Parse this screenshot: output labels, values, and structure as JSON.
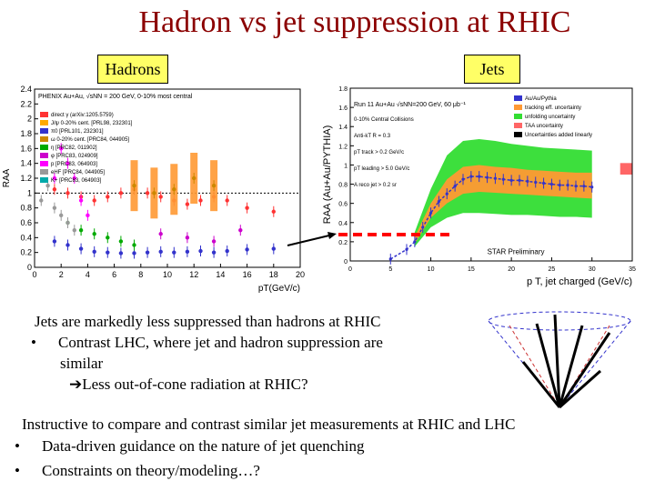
{
  "slide": {
    "title": "Hadron vs jet suppression at RHIC",
    "tag_hadrons": "Hadrons",
    "tag_jets": "Jets",
    "bullets": {
      "line1": "Jets are markedly  less suppressed than hadrons at RHIC",
      "bullet_char": "•",
      "line2": "Contrast LHC, where jet and hadron suppression are",
      "line3": "similar",
      "arrow": "➔",
      "line4": "Less out-of-cone radiation at RHIC?",
      "line5": "Instructive to compare and contrast similar jet measurements at RHIC and LHC",
      "line6": "Data-driven guidance on the nature of jet quenching",
      "line7": "Constraints on theory/modeling…?"
    },
    "colors": {
      "title": "#8b0000",
      "tag_bg": "#ffff66",
      "arrow_line": "#000000",
      "dashed_red": "#ff0000"
    }
  },
  "chart_data": [
    {
      "type": "scatter",
      "title": "",
      "xlabel": "pT(GeV/c)",
      "ylabel": "RAA",
      "xlim": [
        0,
        20
      ],
      "ylim": [
        0,
        2.4
      ],
      "grid": false,
      "xticks": [
        0,
        2,
        4,
        6,
        8,
        10,
        12,
        14,
        16,
        18,
        20
      ],
      "yticks": [
        0,
        0.2,
        0.4,
        0.6,
        0.8,
        1,
        1.2,
        1.4,
        1.6,
        1.8,
        2,
        2.2,
        2.4
      ],
      "reference_line": 1,
      "header": "PHENIX  Au+Au, √sNN = 200 GeV, 0-10% most central",
      "legend": [
        {
          "label": "direct γ (arXiv:1205.5759)",
          "color": "#ff3333"
        },
        {
          "label": "J/ψ 0-20% cent. [PRL98, 232301]",
          "color": "#ffaa00"
        },
        {
          "label": "π0 [PRL101, 232301]",
          "color": "#3333cc"
        },
        {
          "label": "ω 0-20% cent. [PRC84, 044905]",
          "color": "#cc8800"
        },
        {
          "label": "η [PRC82, 011902]",
          "color": "#00aa00"
        },
        {
          "label": "φ [PRC83, 024909]",
          "color": "#cc00cc"
        },
        {
          "label": "p [PRC83, 064903]",
          "color": "#ff00ff"
        },
        {
          "label": "eHF [PRC84, 044905]",
          "color": "#999999"
        },
        {
          "label": "K+ [PRC83, 064903]",
          "color": "#00aaaa"
        }
      ],
      "series": [
        {
          "name": "π0",
          "color": "#3333cc",
          "x": [
            1.5,
            2.5,
            3.5,
            4.5,
            5.5,
            6.5,
            7.5,
            8.5,
            9.5,
            10.5,
            11.5,
            12.5,
            13.5,
            14.5,
            16,
            18
          ],
          "values": [
            0.35,
            0.3,
            0.25,
            0.21,
            0.2,
            0.19,
            0.19,
            0.2,
            0.21,
            0.2,
            0.21,
            0.22,
            0.2,
            0.22,
            0.24,
            0.25
          ]
        },
        {
          "name": "direct γ",
          "color": "#ff3333",
          "x": [
            1.5,
            2.5,
            3.5,
            4.5,
            5.5,
            6.5,
            7.5,
            8.5,
            9.5,
            10.5,
            11.5,
            12.5,
            13.5,
            14.5,
            16,
            18
          ],
          "values": [
            1.05,
            1.0,
            0.95,
            0.9,
            0.95,
            1.0,
            1.05,
            1.0,
            0.95,
            0.9,
            0.85,
            0.9,
            0.95,
            0.9,
            0.8,
            0.75
          ]
        },
        {
          "name": "ω 0-20% cent.",
          "color": "#cc8800",
          "x": [
            7.5,
            9,
            10.5,
            12,
            13.5
          ],
          "values": [
            1.1,
            1.0,
            1.05,
            1.2,
            1.1
          ]
        },
        {
          "name": "η",
          "color": "#00aa00",
          "x": [
            2.5,
            3.5,
            4.5,
            5.5,
            6.5,
            7.5
          ],
          "values": [
            0.6,
            0.5,
            0.45,
            0.4,
            0.35,
            0.3
          ]
        },
        {
          "name": "eHF",
          "color": "#999999",
          "x": [
            0.5,
            1,
            1.5,
            2,
            2.5,
            3
          ],
          "values": [
            0.9,
            1.1,
            0.8,
            0.7,
            0.6,
            0.5
          ]
        },
        {
          "name": "p",
          "color": "#ff00ff",
          "x": [
            1.5,
            2,
            2.5,
            3,
            3.5,
            4
          ],
          "values": [
            1.2,
            1.6,
            1.4,
            1.2,
            0.9,
            0.7
          ]
        },
        {
          "name": "φ",
          "color": "#cc00cc",
          "x": [
            9.5,
            11.5,
            13.5,
            15.5
          ],
          "values": [
            0.45,
            0.4,
            0.35,
            0.5
          ]
        }
      ]
    },
    {
      "type": "line",
      "title": "Run 11 Au+Au √sNN=200 GeV, 60 μb⁻¹",
      "xlabel": "p T, jet charged (GeV/c)",
      "ylabel": "RAA (Au+Au/PYTHIA)",
      "xlim": [
        0,
        35
      ],
      "ylim": [
        0,
        1.8
      ],
      "grid": false,
      "xticks": [
        0,
        5,
        10,
        15,
        20,
        25,
        30,
        35
      ],
      "yticks": [
        0,
        0.2,
        0.4,
        0.6,
        0.8,
        1,
        1.2,
        1.4,
        1.6,
        1.8
      ],
      "annotations": [
        "0-10% Central Collisions",
        "Anti-kT R = 0.3",
        "pT track > 0.2 GeV/c",
        "pT leading > 5.0 GeV/c",
        "A reco jet > 0.2 sr",
        "STAR Preliminary"
      ],
      "legend": [
        {
          "label": "Au/Au/Pythia",
          "color": "#3333cc"
        },
        {
          "label": "tracking eff. uncertainty",
          "color": "#ff9933"
        },
        {
          "label": "unfolding uncertainty",
          "color": "#33dd33"
        },
        {
          "label": "TAA uncertainty",
          "color": "#ff6666"
        },
        {
          "label": "Uncertainties added linearly",
          "color": "#000000"
        }
      ],
      "series": [
        {
          "name": "Au/Au/Pythia",
          "color": "#3333cc",
          "x": [
            5,
            7,
            8,
            9,
            10,
            11,
            12,
            13,
            14,
            15,
            16,
            17,
            18,
            19,
            20,
            21,
            22,
            23,
            24,
            25,
            26,
            27,
            28,
            29,
            30
          ],
          "values": [
            0.02,
            0.12,
            0.2,
            0.35,
            0.5,
            0.62,
            0.7,
            0.78,
            0.85,
            0.88,
            0.88,
            0.87,
            0.86,
            0.85,
            0.84,
            0.84,
            0.83,
            0.82,
            0.81,
            0.8,
            0.79,
            0.79,
            0.78,
            0.78,
            0.77
          ]
        },
        {
          "name": "unfolding uncertainty upper",
          "color": "#33dd33",
          "x": [
            8,
            10,
            12,
            14,
            16,
            18,
            20,
            22,
            24,
            26,
            28,
            30
          ],
          "values": [
            0.3,
            0.75,
            1.1,
            1.25,
            1.27,
            1.25,
            1.22,
            1.2,
            1.18,
            1.17,
            1.16,
            1.15
          ]
        },
        {
          "name": "unfolding uncertainty lower",
          "color": "#33dd33",
          "x": [
            8,
            10,
            12,
            14,
            16,
            18,
            20,
            22,
            24,
            26,
            28,
            30
          ],
          "values": [
            0.15,
            0.35,
            0.45,
            0.5,
            0.5,
            0.49,
            0.48,
            0.48,
            0.47,
            0.46,
            0.46,
            0.45
          ]
        },
        {
          "name": "tracking eff. uncertainty upper",
          "color": "#ff9933",
          "x": [
            8,
            10,
            12,
            14,
            16,
            18,
            20,
            22,
            24,
            26,
            28,
            30
          ],
          "values": [
            0.25,
            0.6,
            0.85,
            0.98,
            1.0,
            0.98,
            0.97,
            0.95,
            0.94,
            0.93,
            0.92,
            0.92
          ]
        },
        {
          "name": "tracking eff. uncertainty lower",
          "color": "#ff9933",
          "x": [
            8,
            10,
            12,
            14,
            16,
            18,
            20,
            22,
            24,
            26,
            28,
            30
          ],
          "values": [
            0.18,
            0.45,
            0.6,
            0.7,
            0.72,
            0.71,
            0.7,
            0.69,
            0.68,
            0.67,
            0.66,
            0.65
          ]
        }
      ]
    }
  ]
}
